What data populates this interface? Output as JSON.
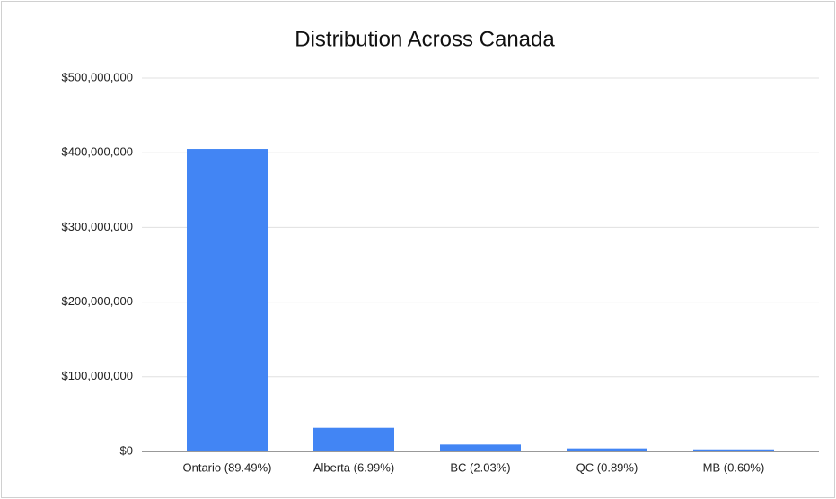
{
  "chart_data": {
    "type": "bar",
    "title": "Distribution Across Canada",
    "categories": [
      "Ontario (89.49%)",
      "Alberta (6.99%)",
      "BC (2.03%)",
      "QC (0.89%)",
      "MB (0.60%)"
    ],
    "values": [
      405000000,
      31600000,
      9200000,
      4000000,
      2700000
    ],
    "color": "#4285f4",
    "ylim": [
      0,
      500000000
    ],
    "yticks": [
      {
        "value": 0,
        "label": "$0"
      },
      {
        "value": 100000000,
        "label": "$100,000,000"
      },
      {
        "value": 200000000,
        "label": "$200,000,000"
      },
      {
        "value": 300000000,
        "label": "$300,000,000"
      },
      {
        "value": 400000000,
        "label": "$400,000,000"
      },
      {
        "value": 500000000,
        "label": "$500,000,000"
      }
    ],
    "grid": true
  }
}
